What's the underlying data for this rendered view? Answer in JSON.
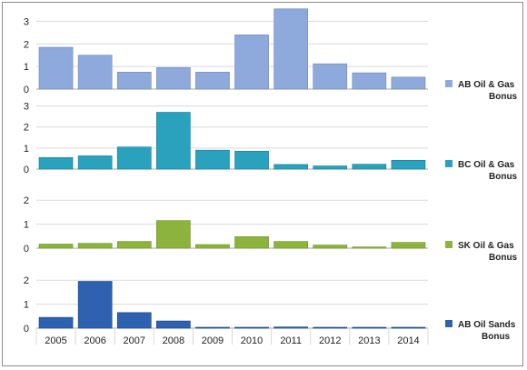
{
  "chart_data": [
    {
      "type": "bar",
      "categories": [
        "2005",
        "2006",
        "2007",
        "2008",
        "2009",
        "2010",
        "2011",
        "2012",
        "2013",
        "2014"
      ],
      "series": [
        {
          "name": "AB Oil & Gas Bonus",
          "values": [
            1.85,
            1.5,
            0.75,
            0.95,
            0.75,
            2.4,
            3.55,
            1.12,
            0.72,
            0.53
          ],
          "color": "#8ea9db"
        }
      ],
      "ylim": [
        0,
        3.5
      ],
      "yticks": [
        0,
        1,
        2,
        3
      ],
      "grid": true,
      "legend": "right"
    },
    {
      "type": "bar",
      "categories": [
        "2005",
        "2006",
        "2007",
        "2008",
        "2009",
        "2010",
        "2011",
        "2012",
        "2013",
        "2014"
      ],
      "series": [
        {
          "name": "BC Oil & Gas Bonus",
          "values": [
            0.55,
            0.63,
            1.05,
            2.7,
            0.9,
            0.85,
            0.22,
            0.15,
            0.23,
            0.42
          ],
          "color": "#2aa2be"
        }
      ],
      "ylim": [
        0,
        3.5
      ],
      "yticks": [
        0,
        1,
        2,
        3
      ],
      "grid": true,
      "legend": "right"
    },
    {
      "type": "bar",
      "categories": [
        "2005",
        "2006",
        "2007",
        "2008",
        "2009",
        "2010",
        "2011",
        "2012",
        "2013",
        "2014"
      ],
      "series": [
        {
          "name": "SK Oil & Gas Bonus",
          "values": [
            0.17,
            0.2,
            0.28,
            1.15,
            0.15,
            0.48,
            0.28,
            0.13,
            0.05,
            0.24
          ],
          "color": "#8cb43c"
        }
      ],
      "ylim": [
        0,
        2.5
      ],
      "yticks": [
        0,
        1,
        2
      ],
      "grid": true,
      "legend": "right"
    },
    {
      "type": "bar",
      "categories": [
        "2005",
        "2006",
        "2007",
        "2008",
        "2009",
        "2010",
        "2011",
        "2012",
        "2013",
        "2014"
      ],
      "series": [
        {
          "name": "AB Oil Sands Bonus",
          "values": [
            0.45,
            1.95,
            0.65,
            0.3,
            0.03,
            0.03,
            0.05,
            0.03,
            0.03,
            0.03
          ],
          "color": "#2e62b0"
        }
      ],
      "ylim": [
        0,
        2.5
      ],
      "yticks": [
        0,
        1,
        2
      ],
      "grid": true,
      "legend": "right"
    }
  ],
  "legend": {
    "items": [
      {
        "lines": [
          "AB Oil & Gas",
          "Bonus"
        ]
      },
      {
        "lines": [
          "BC Oil & Gas",
          "Bonus"
        ]
      },
      {
        "lines": [
          "SK Oil & Gas",
          "Bonus"
        ]
      },
      {
        "lines": [
          "AB Oil Sands",
          "Bonus"
        ]
      }
    ]
  }
}
